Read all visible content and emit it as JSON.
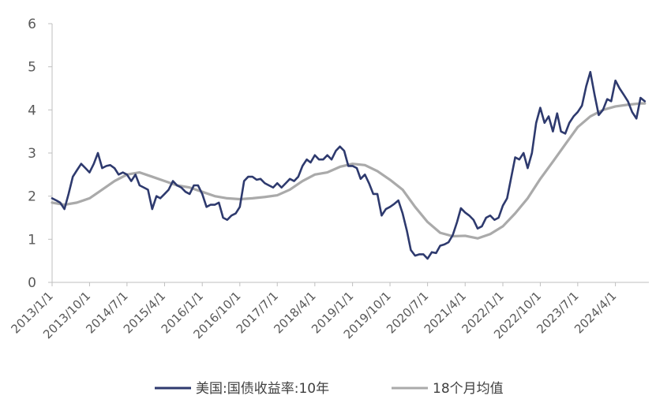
{
  "chart_data": {
    "type": "line",
    "title": "",
    "xlabel": "",
    "ylabel": "",
    "ylim": [
      0,
      6
    ],
    "yticks": [
      "0",
      "1",
      "2",
      "3",
      "4",
      "5",
      "6"
    ],
    "xlim": [
      "2013-01-01",
      "2024-12-01"
    ],
    "xtick_dates": [
      "2013-01-01",
      "2013-10-01",
      "2014-07-01",
      "2015-04-01",
      "2016-01-01",
      "2016-10-01",
      "2017-07-01",
      "2018-04-01",
      "2019-01-01",
      "2019-10-01",
      "2020-07-01",
      "2021-04-01",
      "2022-01-01",
      "2022-10-01",
      "2023-07-01",
      "2024-04-01"
    ],
    "xticks": [
      "2013/1/1",
      "2013/10/1",
      "2014/7/1",
      "2015/4/1",
      "2016/1/1",
      "2016/10/1",
      "2017/7/1",
      "2018/4/1",
      "2019/1/1",
      "2019/10/1",
      "2020/7/1",
      "2021/4/1",
      "2022/1/1",
      "2022/10/1",
      "2023/7/1",
      "2024/4/1"
    ],
    "grid": false,
    "legend_position": "bottom",
    "series": [
      {
        "name": "美国:国债收益率:10年",
        "color": "#2e3a6e",
        "points": [
          [
            "2013-01-01",
            1.95
          ],
          [
            "2013-02-01",
            1.9
          ],
          [
            "2013-03-01",
            1.85
          ],
          [
            "2013-04-01",
            1.7
          ],
          [
            "2013-05-01",
            2.05
          ],
          [
            "2013-06-01",
            2.45
          ],
          [
            "2013-07-01",
            2.6
          ],
          [
            "2013-08-01",
            2.75
          ],
          [
            "2013-09-01",
            2.65
          ],
          [
            "2013-10-01",
            2.55
          ],
          [
            "2013-11-01",
            2.75
          ],
          [
            "2013-12-01",
            3.0
          ],
          [
            "2014-01-01",
            2.65
          ],
          [
            "2014-02-01",
            2.7
          ],
          [
            "2014-03-01",
            2.72
          ],
          [
            "2014-04-01",
            2.65
          ],
          [
            "2014-05-01",
            2.5
          ],
          [
            "2014-06-01",
            2.55
          ],
          [
            "2014-07-01",
            2.5
          ],
          [
            "2014-08-01",
            2.35
          ],
          [
            "2014-09-01",
            2.5
          ],
          [
            "2014-10-01",
            2.25
          ],
          [
            "2014-11-01",
            2.2
          ],
          [
            "2014-12-01",
            2.15
          ],
          [
            "2015-01-01",
            1.7
          ],
          [
            "2015-02-01",
            2.0
          ],
          [
            "2015-03-01",
            1.95
          ],
          [
            "2015-04-01",
            2.05
          ],
          [
            "2015-05-01",
            2.15
          ],
          [
            "2015-06-01",
            2.35
          ],
          [
            "2015-07-01",
            2.25
          ],
          [
            "2015-08-01",
            2.2
          ],
          [
            "2015-09-01",
            2.1
          ],
          [
            "2015-10-01",
            2.05
          ],
          [
            "2015-11-01",
            2.25
          ],
          [
            "2015-12-01",
            2.25
          ],
          [
            "2016-01-01",
            2.05
          ],
          [
            "2016-02-01",
            1.75
          ],
          [
            "2016-03-01",
            1.8
          ],
          [
            "2016-04-01",
            1.8
          ],
          [
            "2016-05-01",
            1.85
          ],
          [
            "2016-06-01",
            1.5
          ],
          [
            "2016-07-01",
            1.45
          ],
          [
            "2016-08-01",
            1.55
          ],
          [
            "2016-09-01",
            1.6
          ],
          [
            "2016-10-01",
            1.75
          ],
          [
            "2016-11-01",
            2.35
          ],
          [
            "2016-12-01",
            2.45
          ],
          [
            "2017-01-01",
            2.45
          ],
          [
            "2017-02-01",
            2.38
          ],
          [
            "2017-03-01",
            2.4
          ],
          [
            "2017-04-01",
            2.3
          ],
          [
            "2017-05-01",
            2.25
          ],
          [
            "2017-06-01",
            2.2
          ],
          [
            "2017-07-01",
            2.3
          ],
          [
            "2017-08-01",
            2.2
          ],
          [
            "2017-09-01",
            2.3
          ],
          [
            "2017-10-01",
            2.4
          ],
          [
            "2017-11-01",
            2.35
          ],
          [
            "2017-12-01",
            2.45
          ],
          [
            "2018-01-01",
            2.7
          ],
          [
            "2018-02-01",
            2.85
          ],
          [
            "2018-03-01",
            2.78
          ],
          [
            "2018-04-01",
            2.95
          ],
          [
            "2018-05-01",
            2.85
          ],
          [
            "2018-06-01",
            2.85
          ],
          [
            "2018-07-01",
            2.95
          ],
          [
            "2018-08-01",
            2.85
          ],
          [
            "2018-09-01",
            3.05
          ],
          [
            "2018-10-01",
            3.15
          ],
          [
            "2018-11-01",
            3.05
          ],
          [
            "2018-12-01",
            2.7
          ],
          [
            "2019-01-01",
            2.7
          ],
          [
            "2019-02-01",
            2.65
          ],
          [
            "2019-03-01",
            2.4
          ],
          [
            "2019-04-01",
            2.5
          ],
          [
            "2019-05-01",
            2.3
          ],
          [
            "2019-06-01",
            2.05
          ],
          [
            "2019-07-01",
            2.05
          ],
          [
            "2019-08-01",
            1.55
          ],
          [
            "2019-09-01",
            1.7
          ],
          [
            "2019-10-01",
            1.75
          ],
          [
            "2019-11-01",
            1.82
          ],
          [
            "2019-12-01",
            1.9
          ],
          [
            "2020-01-01",
            1.6
          ],
          [
            "2020-02-01",
            1.2
          ],
          [
            "2020-03-01",
            0.75
          ],
          [
            "2020-04-01",
            0.62
          ],
          [
            "2020-05-01",
            0.65
          ],
          [
            "2020-06-01",
            0.65
          ],
          [
            "2020-07-01",
            0.55
          ],
          [
            "2020-08-01",
            0.7
          ],
          [
            "2020-09-01",
            0.68
          ],
          [
            "2020-10-01",
            0.85
          ],
          [
            "2020-11-01",
            0.88
          ],
          [
            "2020-12-01",
            0.93
          ],
          [
            "2021-01-01",
            1.1
          ],
          [
            "2021-02-01",
            1.4
          ],
          [
            "2021-03-01",
            1.72
          ],
          [
            "2021-04-01",
            1.62
          ],
          [
            "2021-05-01",
            1.55
          ],
          [
            "2021-06-01",
            1.45
          ],
          [
            "2021-07-01",
            1.25
          ],
          [
            "2021-08-01",
            1.3
          ],
          [
            "2021-09-01",
            1.5
          ],
          [
            "2021-10-01",
            1.55
          ],
          [
            "2021-11-01",
            1.45
          ],
          [
            "2021-12-01",
            1.5
          ],
          [
            "2022-01-01",
            1.78
          ],
          [
            "2022-02-01",
            1.95
          ],
          [
            "2022-03-01",
            2.4
          ],
          [
            "2022-04-01",
            2.9
          ],
          [
            "2022-05-01",
            2.85
          ],
          [
            "2022-06-01",
            3.0
          ],
          [
            "2022-07-01",
            2.65
          ],
          [
            "2022-08-01",
            3.0
          ],
          [
            "2022-09-01",
            3.7
          ],
          [
            "2022-10-01",
            4.05
          ],
          [
            "2022-11-01",
            3.7
          ],
          [
            "2022-12-01",
            3.85
          ],
          [
            "2023-01-01",
            3.5
          ],
          [
            "2023-02-01",
            3.92
          ],
          [
            "2023-03-01",
            3.5
          ],
          [
            "2023-04-01",
            3.45
          ],
          [
            "2023-05-01",
            3.7
          ],
          [
            "2023-06-01",
            3.85
          ],
          [
            "2023-07-01",
            3.95
          ],
          [
            "2023-08-01",
            4.1
          ],
          [
            "2023-09-01",
            4.55
          ],
          [
            "2023-10-01",
            4.88
          ],
          [
            "2023-11-01",
            4.35
          ],
          [
            "2023-12-01",
            3.88
          ],
          [
            "2024-01-01",
            4.0
          ],
          [
            "2024-02-01",
            4.25
          ],
          [
            "2024-03-01",
            4.2
          ],
          [
            "2024-04-01",
            4.68
          ],
          [
            "2024-05-01",
            4.5
          ],
          [
            "2024-06-01",
            4.35
          ],
          [
            "2024-07-01",
            4.2
          ],
          [
            "2024-08-01",
            3.95
          ],
          [
            "2024-09-01",
            3.8
          ],
          [
            "2024-10-01",
            4.28
          ],
          [
            "2024-11-01",
            4.2
          ]
        ]
      },
      {
        "name": "18个月均值",
        "color": "#aaaaaa",
        "points": [
          [
            "2013-01-01",
            1.85
          ],
          [
            "2013-04-01",
            1.8
          ],
          [
            "2013-07-01",
            1.85
          ],
          [
            "2013-10-01",
            1.95
          ],
          [
            "2014-01-01",
            2.15
          ],
          [
            "2014-04-01",
            2.35
          ],
          [
            "2014-07-01",
            2.5
          ],
          [
            "2014-10-01",
            2.55
          ],
          [
            "2015-01-01",
            2.45
          ],
          [
            "2015-04-01",
            2.35
          ],
          [
            "2015-07-01",
            2.25
          ],
          [
            "2015-10-01",
            2.2
          ],
          [
            "2016-01-01",
            2.1
          ],
          [
            "2016-04-01",
            2.0
          ],
          [
            "2016-07-01",
            1.95
          ],
          [
            "2016-10-01",
            1.93
          ],
          [
            "2017-01-01",
            1.95
          ],
          [
            "2017-04-01",
            1.98
          ],
          [
            "2017-07-01",
            2.02
          ],
          [
            "2017-10-01",
            2.15
          ],
          [
            "2018-01-01",
            2.35
          ],
          [
            "2018-04-01",
            2.5
          ],
          [
            "2018-07-01",
            2.55
          ],
          [
            "2018-10-01",
            2.68
          ],
          [
            "2019-01-01",
            2.75
          ],
          [
            "2019-04-01",
            2.72
          ],
          [
            "2019-07-01",
            2.58
          ],
          [
            "2019-10-01",
            2.38
          ],
          [
            "2020-01-01",
            2.15
          ],
          [
            "2020-04-01",
            1.75
          ],
          [
            "2020-07-01",
            1.4
          ],
          [
            "2020-10-01",
            1.15
          ],
          [
            "2021-01-01",
            1.07
          ],
          [
            "2021-04-01",
            1.08
          ],
          [
            "2021-07-01",
            1.02
          ],
          [
            "2021-10-01",
            1.12
          ],
          [
            "2022-01-01",
            1.3
          ],
          [
            "2022-04-01",
            1.6
          ],
          [
            "2022-07-01",
            1.95
          ],
          [
            "2022-10-01",
            2.4
          ],
          [
            "2023-01-01",
            2.8
          ],
          [
            "2023-04-01",
            3.2
          ],
          [
            "2023-07-01",
            3.6
          ],
          [
            "2023-10-01",
            3.85
          ],
          [
            "2024-01-01",
            4.0
          ],
          [
            "2024-04-01",
            4.08
          ],
          [
            "2024-07-01",
            4.12
          ],
          [
            "2024-10-01",
            4.15
          ],
          [
            "2024-11-01",
            4.15
          ]
        ]
      }
    ]
  }
}
